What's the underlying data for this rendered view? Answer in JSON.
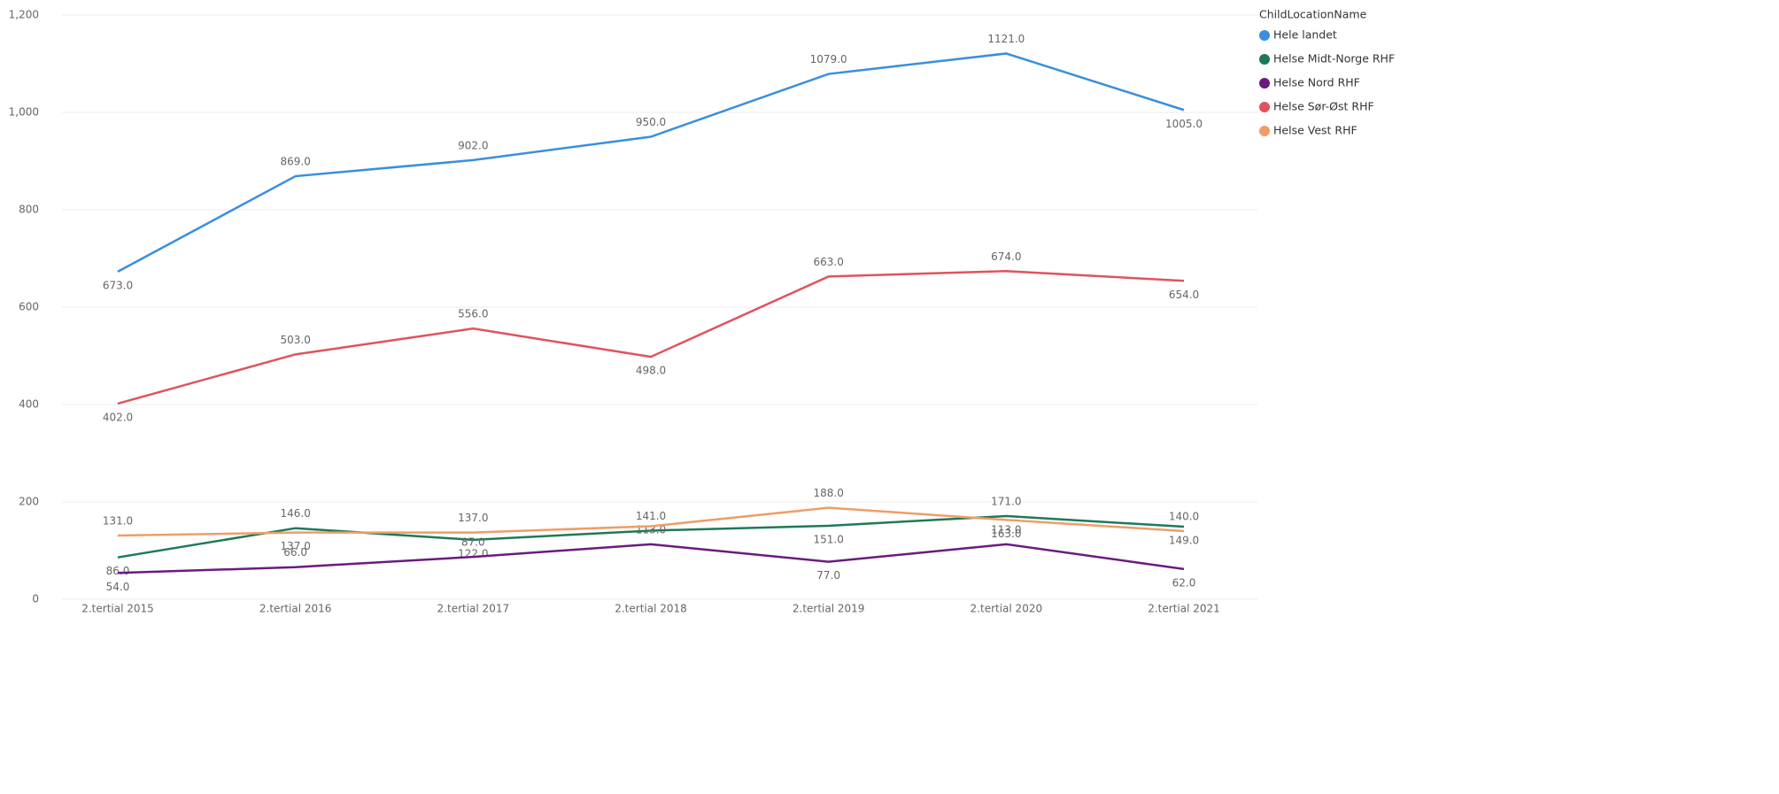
{
  "chart_data": {
    "type": "line",
    "legend_title": "ChildLocationName",
    "legend_position": "right",
    "grid": true,
    "categories": [
      "2.tertial 2015",
      "2.tertial 2016",
      "2.tertial 2017",
      "2.tertial 2018",
      "2.tertial 2019",
      "2.tertial 2020",
      "2.tertial 2021"
    ],
    "ylim": [
      0,
      1200
    ],
    "yticks": [
      0,
      200,
      400,
      600,
      800,
      {
        "value": 1000,
        "label": "1,000"
      },
      {
        "value": 1200,
        "label": "1,200"
      }
    ],
    "series": [
      {
        "name": "Hele landet",
        "color": "#3a8fdc",
        "values": [
          673,
          869,
          902,
          950,
          1079,
          1121,
          1005
        ],
        "value_labels": [
          "673.0",
          "869.0",
          "902.0",
          "950.0",
          "1079.0",
          "1121.0",
          "1005.0"
        ],
        "label_side": [
          1,
          -1,
          -1,
          -1,
          -1,
          -1,
          1
        ]
      },
      {
        "name": "Helse Midt-Norge RHF",
        "color": "#1e7a56",
        "values": [
          86,
          146,
          122,
          141,
          151,
          171,
          149
        ],
        "value_labels": [
          "86.0",
          "146.0",
          "122.0",
          "141.0",
          "151.0",
          "171.0",
          "149.0"
        ],
        "label_side": [
          1,
          -1,
          1,
          -1,
          1,
          -1,
          1
        ]
      },
      {
        "name": "Helse Nord RHF",
        "color": "#6a1b7e",
        "values": [
          54,
          66,
          87,
          113,
          77,
          113,
          62
        ],
        "value_labels": [
          "54.0",
          "66.0",
          "87.0",
          "113.0",
          "77.0",
          "113.0",
          "62.0"
        ],
        "label_side": [
          1,
          -1,
          -1,
          -1,
          1,
          -1,
          1
        ]
      },
      {
        "name": "Helse Sør-Øst RHF",
        "color": "#e0535d",
        "values": [
          402,
          503,
          556,
          498,
          663,
          674,
          654
        ],
        "value_labels": [
          "402.0",
          "503.0",
          "556.0",
          "498.0",
          "663.0",
          "674.0",
          "654.0"
        ],
        "label_side": [
          1,
          -1,
          -1,
          1,
          -1,
          -1,
          1
        ]
      },
      {
        "name": "Helse Vest RHF",
        "color": "#ee9d68",
        "values": [
          131,
          137,
          137,
          150,
          188,
          163,
          140
        ],
        "value_labels": [
          "131.0",
          "137.0",
          "137.0",
          null,
          "188.0",
          "163.0",
          "140.0"
        ],
        "label_side": [
          -1,
          1,
          -1,
          1,
          -1,
          1,
          -1
        ]
      }
    ]
  }
}
